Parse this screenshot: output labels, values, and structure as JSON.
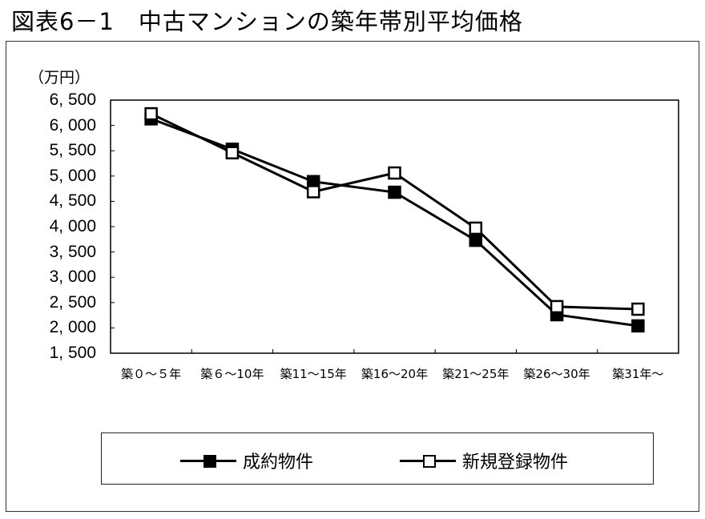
{
  "title": "図表6－1　中古マンションの築年帯別平均価格",
  "chart_data": {
    "type": "line",
    "title": "図表6－1　中古マンションの築年帯別平均価格",
    "xlabel": "",
    "ylabel": "（万円）",
    "unit_label": "（万円）",
    "categories": [
      "築０～５年",
      "築６～10年",
      "築11～15年",
      "築16～20年",
      "築21～25年",
      "築26～30年",
      "築31年～"
    ],
    "y_ticks": [
      "6, 500",
      "6, 000",
      "5, 500",
      "5, 000",
      "4, 500",
      "4, 000",
      "3, 500",
      "3, 000",
      "2, 500",
      "2, 000",
      "1, 500"
    ],
    "y_tick_values": [
      6500,
      6000,
      5500,
      5000,
      4500,
      4000,
      3500,
      3000,
      2500,
      2000,
      1500
    ],
    "ylim": [
      1500,
      6500
    ],
    "grid": false,
    "legend_position": "bottom",
    "series": [
      {
        "name": "成約物件",
        "marker": "filled-square",
        "color": "#000000",
        "values": [
          6130,
          5530,
          4890,
          4680,
          3730,
          2260,
          2040
        ]
      },
      {
        "name": "新規登録物件",
        "marker": "open-square",
        "color": "#000000",
        "values": [
          6230,
          5460,
          4690,
          5060,
          3970,
          2420,
          2370
        ]
      }
    ]
  },
  "legend": {
    "items": [
      {
        "label": "成約物件",
        "marker": "filled-square"
      },
      {
        "label": "新規登録物件",
        "marker": "open-square"
      }
    ]
  }
}
